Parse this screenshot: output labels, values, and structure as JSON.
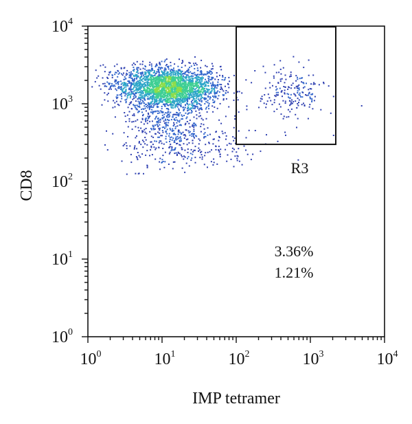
{
  "chart_data": {
    "type": "scatter",
    "title": "",
    "xlabel": "IMP tetramer",
    "ylabel": "CD8",
    "xscale": "log",
    "yscale": "log",
    "xlim": [
      1,
      10000
    ],
    "ylim": [
      1,
      10000
    ],
    "grid": false,
    "x_ticks": [
      {
        "base": "10",
        "exp": "0",
        "value": 1
      },
      {
        "base": "10",
        "exp": "1",
        "value": 10
      },
      {
        "base": "10",
        "exp": "2",
        "value": 100
      },
      {
        "base": "10",
        "exp": "3",
        "value": 1000
      },
      {
        "base": "10",
        "exp": "4",
        "value": 10000
      }
    ],
    "y_ticks": [
      {
        "base": "10",
        "exp": "0",
        "value": 1
      },
      {
        "base": "10",
        "exp": "1",
        "value": 10
      },
      {
        "base": "10",
        "exp": "2",
        "value": 100
      },
      {
        "base": "10",
        "exp": "3",
        "value": 1000
      },
      {
        "base": "10",
        "exp": "4",
        "value": 10000
      }
    ],
    "gate": {
      "label": "R3",
      "x": [
        100,
        2200
      ],
      "y": [
        300,
        10000
      ]
    },
    "annotations": [
      "3.36%",
      "1.21%"
    ],
    "populations": [
      {
        "cx": 15,
        "cy": 1600,
        "sx": 0.3,
        "sy": 0.14,
        "count": 1900
      },
      {
        "cx": 6,
        "cy": 1800,
        "sx": 0.28,
        "sy": 0.12,
        "count": 700
      },
      {
        "cx": 12,
        "cy": 500,
        "sx": 0.3,
        "sy": 0.25,
        "count": 500
      },
      {
        "cx": 40,
        "cy": 250,
        "sx": 0.45,
        "sy": 0.15,
        "count": 120
      },
      {
        "cx": 550,
        "cy": 1400,
        "sx": 0.22,
        "sy": 0.18,
        "count": 200
      }
    ],
    "colormap": [
      "#2e3fb0",
      "#3366cc",
      "#2ea6c9",
      "#3fcf94",
      "#8ddc4b"
    ]
  }
}
